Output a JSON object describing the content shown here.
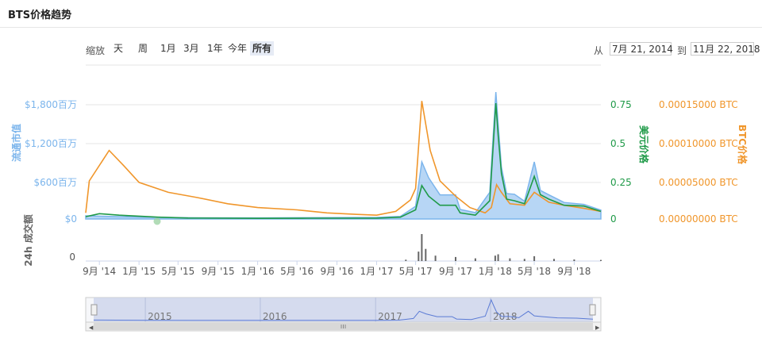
{
  "header": {
    "title": "BTS价格趋势"
  },
  "zoom": {
    "label": "缩放",
    "buttons": [
      "天",
      "周",
      "1月",
      "3月",
      "1年",
      "今年",
      "所有"
    ],
    "active": "所有"
  },
  "range": {
    "from_label": "从",
    "from": "7月 21, 2014",
    "to_label": "到",
    "to": "11月 22, 2018"
  },
  "colors": {
    "market_cap": "#7cb5ec",
    "usd": "#1f9a48",
    "btc": "#f0962b",
    "volume": "#666666",
    "navigator": "#5b7bd5"
  },
  "chart_data": {
    "type": "line",
    "x_range": [
      "2014-07-21",
      "2018-11-22"
    ],
    "x_ticks": [
      "9月 '14",
      "1月 '15",
      "5月 '15",
      "9月 '15",
      "1月 '16",
      "5月 '16",
      "9月 '16",
      "1月 '17",
      "5月 '17",
      "9月 '17",
      "1月 '18",
      "5月 '18",
      "9月 '18"
    ],
    "axes": {
      "market_cap": {
        "title": "流通市值",
        "ticks": [
          "$1,800百万",
          "$1,200百万",
          "$600百万",
          "$0"
        ],
        "range": [
          0,
          1800
        ]
      },
      "usd": {
        "title": "美元价格",
        "ticks": [
          "0.75",
          "0.5",
          "0.25",
          "0"
        ],
        "range": [
          0,
          0.75
        ]
      },
      "btc": {
        "title": "BTC价格",
        "ticks": [
          "0.00015000 BTC",
          "0.00010000 BTC",
          "0.00005000 BTC",
          "0.00000000 BTC"
        ],
        "range": [
          0,
          0.00015
        ]
      },
      "volume": {
        "title": "24h 成交额",
        "ticks": [
          "0"
        ]
      }
    },
    "series": [
      {
        "key": "market_cap",
        "axis": "market_cap",
        "points": [
          [
            "2014-07-21",
            50
          ],
          [
            "2014-10-01",
            40
          ],
          [
            "2015-01-01",
            30
          ],
          [
            "2015-06-01",
            20
          ],
          [
            "2016-01-01",
            18
          ],
          [
            "2016-06-01",
            20
          ],
          [
            "2017-01-01",
            25
          ],
          [
            "2017-03-15",
            40
          ],
          [
            "2017-05-01",
            200
          ],
          [
            "2017-05-20",
            900
          ],
          [
            "2017-06-10",
            650
          ],
          [
            "2017-07-15",
            380
          ],
          [
            "2017-09-01",
            380
          ],
          [
            "2017-09-15",
            150
          ],
          [
            "2017-11-01",
            100
          ],
          [
            "2017-12-15",
            420
          ],
          [
            "2018-01-03",
            2000
          ],
          [
            "2018-01-10",
            1500
          ],
          [
            "2018-01-20",
            820
          ],
          [
            "2018-02-05",
            400
          ],
          [
            "2018-03-01",
            390
          ],
          [
            "2018-04-01",
            280
          ],
          [
            "2018-05-01",
            900
          ],
          [
            "2018-05-20",
            450
          ],
          [
            "2018-06-15",
            380
          ],
          [
            "2018-08-01",
            260
          ],
          [
            "2018-10-01",
            230
          ],
          [
            "2018-11-22",
            140
          ]
        ]
      },
      {
        "key": "usd",
        "axis": "usd",
        "points": [
          [
            "2014-07-21",
            0.015
          ],
          [
            "2014-09-01",
            0.035
          ],
          [
            "2014-11-01",
            0.025
          ],
          [
            "2015-03-01",
            0.012
          ],
          [
            "2015-06-01",
            0.006
          ],
          [
            "2016-01-01",
            0.004
          ],
          [
            "2016-06-01",
            0.005
          ],
          [
            "2017-01-01",
            0.005
          ],
          [
            "2017-03-15",
            0.012
          ],
          [
            "2017-05-01",
            0.06
          ],
          [
            "2017-05-20",
            0.22
          ],
          [
            "2017-06-10",
            0.15
          ],
          [
            "2017-07-15",
            0.09
          ],
          [
            "2017-09-01",
            0.09
          ],
          [
            "2017-09-15",
            0.04
          ],
          [
            "2017-11-01",
            0.025
          ],
          [
            "2017-12-15",
            0.12
          ],
          [
            "2018-01-03",
            0.76
          ],
          [
            "2018-01-10",
            0.55
          ],
          [
            "2018-01-20",
            0.3
          ],
          [
            "2018-02-05",
            0.13
          ],
          [
            "2018-03-01",
            0.12
          ],
          [
            "2018-04-01",
            0.1
          ],
          [
            "2018-05-01",
            0.28
          ],
          [
            "2018-05-20",
            0.16
          ],
          [
            "2018-06-15",
            0.13
          ],
          [
            "2018-08-01",
            0.09
          ],
          [
            "2018-10-01",
            0.085
          ],
          [
            "2018-11-22",
            0.05
          ]
        ]
      },
      {
        "key": "btc",
        "axis": "btc",
        "points": [
          [
            "2014-07-21",
            8e-06
          ],
          [
            "2014-08-01",
            5e-05
          ],
          [
            "2014-10-01",
            9e-05
          ],
          [
            "2014-11-15",
            7e-05
          ],
          [
            "2015-01-01",
            4.8e-05
          ],
          [
            "2015-04-01",
            3.5e-05
          ],
          [
            "2015-07-01",
            2.8e-05
          ],
          [
            "2015-10-01",
            2e-05
          ],
          [
            "2016-01-01",
            1.5e-05
          ],
          [
            "2016-05-01",
            1.2e-05
          ],
          [
            "2016-08-01",
            8e-06
          ],
          [
            "2016-11-01",
            6e-06
          ],
          [
            "2017-01-01",
            5e-06
          ],
          [
            "2017-03-01",
            1e-05
          ],
          [
            "2017-04-15",
            2.5e-05
          ],
          [
            "2017-05-01",
            4e-05
          ],
          [
            "2017-05-20",
            0.000155
          ],
          [
            "2017-06-15",
            9e-05
          ],
          [
            "2017-07-15",
            5e-05
          ],
          [
            "2017-09-01",
            3e-05
          ],
          [
            "2017-10-15",
            1.5e-05
          ],
          [
            "2017-12-01",
            8e-06
          ],
          [
            "2017-12-20",
            1.5e-05
          ],
          [
            "2018-01-05",
            4.5e-05
          ],
          [
            "2018-01-20",
            3.5e-05
          ],
          [
            "2018-02-15",
            2e-05
          ],
          [
            "2018-04-01",
            1.8e-05
          ],
          [
            "2018-05-01",
            3.5e-05
          ],
          [
            "2018-06-15",
            2.2e-05
          ],
          [
            "2018-08-01",
            1.8e-05
          ],
          [
            "2018-10-01",
            1.4e-05
          ],
          [
            "2018-11-22",
            1e-05
          ]
        ]
      },
      {
        "key": "volume",
        "axis": "volume",
        "points": [
          [
            "2017-04-01",
            0.05
          ],
          [
            "2017-05-10",
            0.35
          ],
          [
            "2017-05-20",
            1.0
          ],
          [
            "2017-06-01",
            0.45
          ],
          [
            "2017-07-01",
            0.2
          ],
          [
            "2017-09-01",
            0.15
          ],
          [
            "2017-11-01",
            0.1
          ],
          [
            "2018-01-01",
            0.2
          ],
          [
            "2018-01-10",
            0.25
          ],
          [
            "2018-02-15",
            0.1
          ],
          [
            "2018-04-01",
            0.08
          ],
          [
            "2018-05-01",
            0.18
          ],
          [
            "2018-07-01",
            0.08
          ],
          [
            "2018-09-01",
            0.06
          ],
          [
            "2018-11-22",
            0.04
          ]
        ]
      }
    ]
  },
  "navigator": {
    "year_labels": [
      "2015",
      "2016",
      "2017",
      "2018"
    ]
  }
}
